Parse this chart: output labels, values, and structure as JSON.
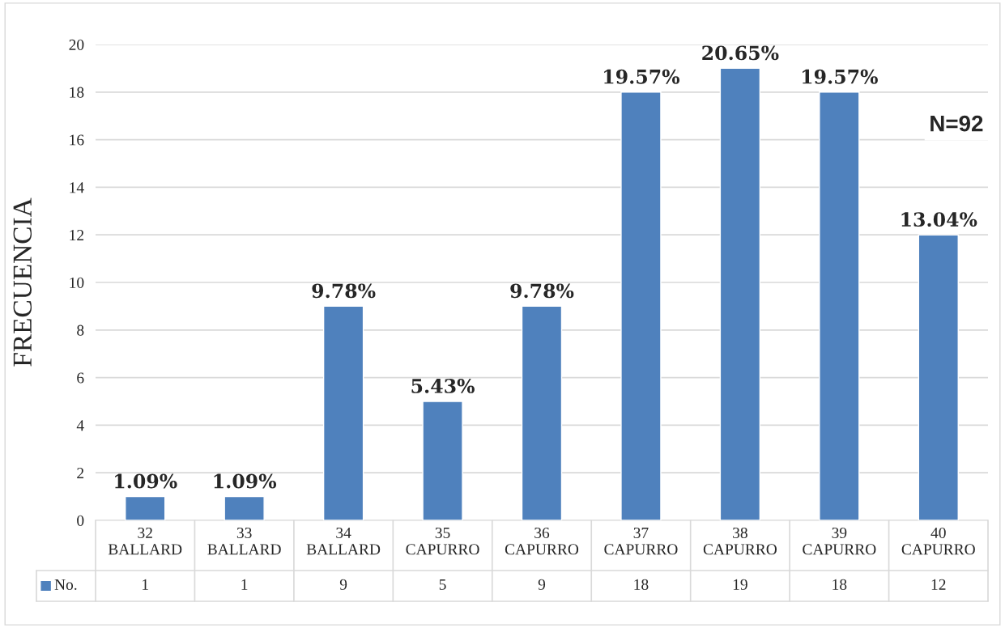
{
  "chart_data": {
    "type": "bar",
    "ylabel": "FRECUENCIA",
    "categories": [
      "32\nBALLARD",
      "33\nBALLARD",
      "34\nBALLARD",
      "35\nCAPURRO",
      "36\nCAPURRO",
      "37\nCAPURRO",
      "38\nCAPURRO",
      "39\nCAPURRO",
      "40\nCAPURRO"
    ],
    "series": [
      {
        "name": "No.",
        "color": "#4f81bd",
        "values": [
          1,
          1,
          9,
          5,
          9,
          18,
          19,
          18,
          12
        ],
        "value_labels": [
          "1",
          "1",
          "9",
          "5",
          "9",
          "18",
          "19",
          "18",
          "12"
        ]
      }
    ],
    "ylim": [
      0,
      20
    ],
    "yticks": [
      0,
      2,
      4,
      6,
      8,
      10,
      12,
      14,
      16,
      18,
      20
    ],
    "grid": "y",
    "legend": "bottom",
    "annotations": [
      {
        "text": "1.09%",
        "x": "32\nBALLARD",
        "y": 1
      },
      {
        "text": "1.09%",
        "x": "33\nBALLARD",
        "y": 1
      },
      {
        "text": "9.78%",
        "x": "34\nBALLARD",
        "y": 9
      },
      {
        "text": "5.43%",
        "x": "35\nCAPURRO",
        "y": 5
      },
      {
        "text": "9.78%",
        "x": "36\nCAPURRO",
        "y": 9
      },
      {
        "text": "19.57%",
        "x": "37\nCAPURRO",
        "y": 18
      },
      {
        "text": "20.65%",
        "x": "38\nCAPURRO",
        "y": 19
      },
      {
        "text": "19.57%",
        "x": "39\nCAPURRO",
        "y": 18
      },
      {
        "text": "13.04%",
        "x": "40\nCAPURRO",
        "y": 12
      },
      "N=92"
    ]
  }
}
